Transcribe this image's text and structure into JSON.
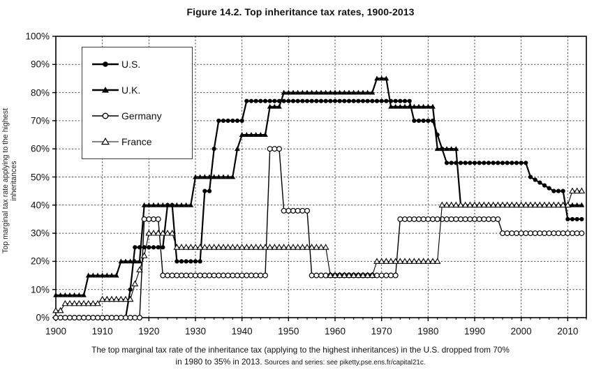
{
  "title": "Figure 14.2. Top inheritance tax rates, 1900-2013",
  "footer": {
    "line1": "The top marginal tax rate of the inheritance tax (applying to the highest inheritances) in the U.S. dropped from 70%",
    "line2_main": "in 1980 to 35% in 2013.",
    "line2_source": "Sources and series: see piketty.pse.ens.fr/capital21c."
  },
  "chart_data": {
    "type": "line",
    "title": "Figure 14.2. Top inheritance tax rates, 1900-2013",
    "xlabel": "",
    "ylabel": "Top marginal tax rate applying to the highest inheritances",
    "x_range": [
      1900,
      2013
    ],
    "ylim": [
      0,
      100
    ],
    "x_tick_interval": 10,
    "x_ticks": [
      1900,
      1910,
      1920,
      1930,
      1940,
      1950,
      1960,
      1970,
      1980,
      1990,
      2000,
      2010
    ],
    "y_ticks": [
      0,
      10,
      20,
      30,
      40,
      50,
      60,
      70,
      80,
      90,
      100
    ],
    "y_tick_suffix": "%",
    "grid": {
      "horizontal": true,
      "vertical": true,
      "style": "dashed"
    },
    "legend_position": "top-left-inside",
    "marker_frequency": "every year",
    "colors": {
      "foreground": "#000000",
      "background": "#ffffff"
    },
    "series": [
      {
        "name": "U.S.",
        "marker": "filled-circle",
        "line_width": 2.2,
        "steps": [
          [
            1900,
            0
          ],
          [
            1916,
            10
          ],
          [
            1917,
            25
          ],
          [
            1924,
            40
          ],
          [
            1926,
            20
          ],
          [
            1932,
            45
          ],
          [
            1934,
            60
          ],
          [
            1935,
            70
          ],
          [
            1941,
            77
          ],
          [
            1977,
            70
          ],
          [
            1982,
            65
          ],
          [
            1983,
            60
          ],
          [
            1984,
            55
          ],
          [
            2002,
            50
          ],
          [
            2003,
            49
          ],
          [
            2004,
            48
          ],
          [
            2005,
            47
          ],
          [
            2006,
            46
          ],
          [
            2007,
            45
          ],
          [
            2010,
            35
          ]
        ],
        "end_year": 2013,
        "end_value": 35
      },
      {
        "name": "U.K.",
        "marker": "filled-triangle",
        "line_width": 2.2,
        "steps": [
          [
            1900,
            8
          ],
          [
            1907,
            15
          ],
          [
            1914,
            20
          ],
          [
            1919,
            40
          ],
          [
            1930,
            50
          ],
          [
            1939,
            60
          ],
          [
            1940,
            65
          ],
          [
            1946,
            75
          ],
          [
            1949,
            80
          ],
          [
            1969,
            85
          ],
          [
            1972,
            75
          ],
          [
            1982,
            60
          ],
          [
            1987,
            40
          ]
        ],
        "end_year": 2013,
        "end_value": 40
      },
      {
        "name": "Germany",
        "marker": "open-circle",
        "line_width": 1.4,
        "steps": [
          [
            1900,
            0
          ],
          [
            1919,
            35
          ],
          [
            1923,
            15
          ],
          [
            1946,
            60
          ],
          [
            1949,
            38
          ],
          [
            1955,
            15
          ],
          [
            1974,
            35
          ],
          [
            1996,
            30
          ]
        ],
        "end_year": 2013,
        "end_value": 30
      },
      {
        "name": "France",
        "marker": "open-triangle",
        "line_width": 1.1,
        "steps": [
          [
            1900,
            2.5
          ],
          [
            1902,
            5
          ],
          [
            1910,
            6.5
          ],
          [
            1917,
            12
          ],
          [
            1918,
            17
          ],
          [
            1919,
            22
          ],
          [
            1920,
            30
          ],
          [
            1926,
            25
          ],
          [
            1959,
            15
          ],
          [
            1969,
            20
          ],
          [
            1983,
            40
          ],
          [
            2011,
            45
          ]
        ],
        "end_year": 2013,
        "end_value": 45
      }
    ]
  }
}
